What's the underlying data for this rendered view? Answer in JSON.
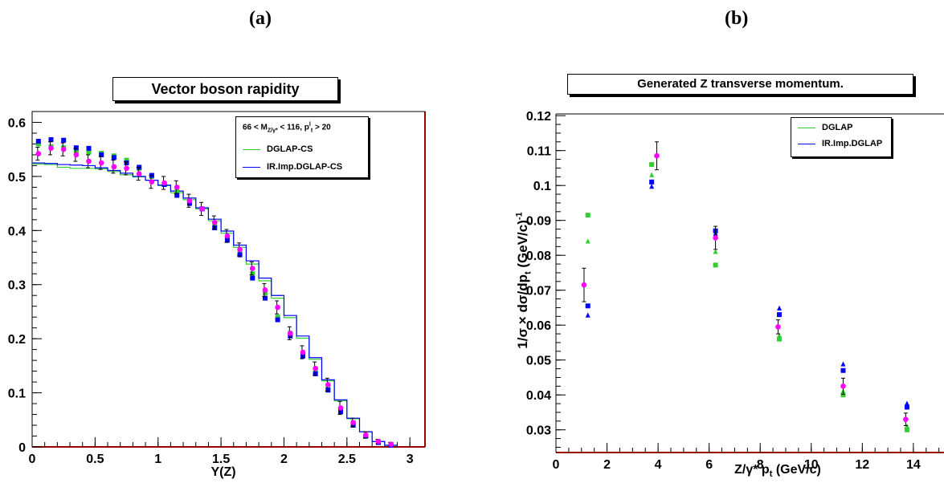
{
  "panels": {
    "a_label": "(a)",
    "b_label": "(b)"
  },
  "colors": {
    "dglap": "#33cc33",
    "irimp": "#0000ff",
    "data": "#ff00ff",
    "frame": "#990000"
  },
  "chart_data": [
    {
      "type": "scatter",
      "title": "Vector boson rapidity",
      "xlabel": "Y(Z)",
      "ylabel": "",
      "xlim": [
        0,
        3.12
      ],
      "ylim": [
        0,
        0.62
      ],
      "xticks": [
        "0",
        "0.5",
        "1",
        "1.5",
        "2",
        "2.5",
        "3"
      ],
      "yticks": [
        "0",
        "0.1",
        "0.2",
        "0.3",
        "0.4",
        "0.5",
        "0.6"
      ],
      "legend": {
        "header": "66 < M",
        "header_sub": "Z/γ*",
        "header_mid": " < 116, p",
        "header_sup": "l",
        "header_sub2": "t",
        "header_end": " > 20",
        "entries": [
          "DGLAP-CS",
          "IR.Imp.DGLAP-CS"
        ],
        "placement": "top-right"
      },
      "x": [
        0.05,
        0.15,
        0.25,
        0.35,
        0.45,
        0.55,
        0.65,
        0.75,
        0.85,
        0.95,
        1.05,
        1.15,
        1.25,
        1.35,
        1.45,
        1.55,
        1.65,
        1.75,
        1.85,
        1.95,
        2.05,
        2.15,
        2.25,
        2.35,
        2.45,
        2.55,
        2.65,
        2.75,
        2.85
      ],
      "series": [
        {
          "name": "DGLAP-CS",
          "curve": [
            0.523,
            0.522,
            0.517,
            0.515,
            0.515,
            0.514,
            0.509,
            0.503,
            0.499,
            0.493,
            0.483,
            0.47,
            0.457,
            0.44,
            0.418,
            0.395,
            0.369,
            0.338,
            0.307,
            0.275,
            0.239,
            0.201,
            0.162,
            0.122,
            0.085,
            0.052,
            0.028,
            0.01,
            0.003
          ],
          "points": [
            0.56,
            0.555,
            0.553,
            0.547,
            0.545,
            0.543,
            0.538,
            0.53,
            0.515,
            0.5,
            0.487,
            0.472,
            0.455,
            0.44,
            0.41,
            0.385,
            0.358,
            0.32,
            0.285,
            0.24,
            0.21,
            0.17,
            0.14,
            0.11,
            0.07,
            0.045,
            0.02,
            0.01,
            0.005
          ]
        },
        {
          "name": "IR.Imp.DGLAP-CS",
          "curve": [
            0.525,
            0.524,
            0.522,
            0.521,
            0.52,
            0.516,
            0.511,
            0.506,
            0.5,
            0.493,
            0.484,
            0.473,
            0.46,
            0.442,
            0.421,
            0.399,
            0.373,
            0.344,
            0.312,
            0.28,
            0.243,
            0.205,
            0.165,
            0.124,
            0.087,
            0.053,
            0.028,
            0.01,
            0.003
          ],
          "points": [
            0.565,
            0.568,
            0.567,
            0.553,
            0.552,
            0.54,
            0.535,
            0.525,
            0.517,
            0.502,
            0.485,
            0.465,
            0.45,
            0.44,
            0.405,
            0.382,
            0.355,
            0.312,
            0.275,
            0.235,
            0.205,
            0.168,
            0.135,
            0.105,
            0.065,
            0.04,
            0.02,
            0.008,
            0.003
          ]
        },
        {
          "name": "",
          "points": [
            0.542,
            0.552,
            0.55,
            0.54,
            0.528,
            0.525,
            0.518,
            0.515,
            0.505,
            0.49,
            0.488,
            0.48,
            0.455,
            0.44,
            0.415,
            0.39,
            0.365,
            0.33,
            0.29,
            0.258,
            0.21,
            0.175,
            0.145,
            0.115,
            0.072,
            0.045,
            0.022,
            0.01,
            0.005
          ],
          "errors": [
            0.012,
            0.012,
            0.012,
            0.012,
            0.012,
            0.012,
            0.012,
            0.012,
            0.012,
            0.012,
            0.012,
            0.012,
            0.012,
            0.012,
            0.012,
            0.012,
            0.012,
            0.012,
            0.012,
            0.012,
            0.012,
            0.012,
            0.012,
            0.012,
            0.012,
            0.008,
            0.006,
            0.004,
            0.003
          ]
        }
      ]
    },
    {
      "type": "scatter",
      "title": "Generated Z transverse momentum.",
      "xlabel": "Z/γ* p",
      "xlabel_sub": "t",
      "xlabel_end": " (GeV/c)",
      "ylabel": "1/σ × dσ/dp",
      "ylabel_sub": "t",
      "ylabel_end": "  (GeV/c)",
      "ylabel_sup": "-1",
      "xlim": [
        0,
        15.2
      ],
      "ylim": [
        0.0235,
        0.1205
      ],
      "xticks": [
        "0",
        "2",
        "4",
        "6",
        "8",
        "10",
        "12",
        "14"
      ],
      "yticks": [
        "0.03",
        "0.04",
        "0.05",
        "0.06",
        "0.07",
        "0.08",
        "0.09",
        "0.1",
        "0.11",
        "0.12"
      ],
      "legend": {
        "entries": [
          "DGLAP",
          "IR.Imp.DGLAP"
        ],
        "placement": "top-right"
      },
      "x": [
        1.25,
        3.75,
        6.25,
        8.75,
        11.25,
        13.75
      ],
      "series": [
        {
          "name": "DGLAP",
          "squares": [
            0.0915,
            0.106,
            0.0772,
            0.056,
            0.04,
            0.03
          ],
          "triangles": [
            0.084,
            0.103,
            0.081,
            0.057,
            0.041,
            0.031
          ]
        },
        {
          "name": "IR.Imp.DGLAP",
          "squares": [
            0.0655,
            0.101,
            0.087,
            0.063,
            0.047,
            0.0365
          ],
          "triangles": [
            0.0628,
            0.0997,
            0.0862,
            0.0648,
            0.0488,
            0.0375
          ]
        },
        {
          "name": "",
          "x": [
            1.1,
            3.95,
            6.25,
            8.7,
            11.25,
            13.7
          ],
          "points": [
            0.0715,
            0.1085,
            0.085,
            0.0595,
            0.0425,
            0.033
          ],
          "errors": [
            0.0048,
            0.004,
            0.0033,
            0.002,
            0.0023,
            0.0018
          ]
        }
      ]
    }
  ]
}
